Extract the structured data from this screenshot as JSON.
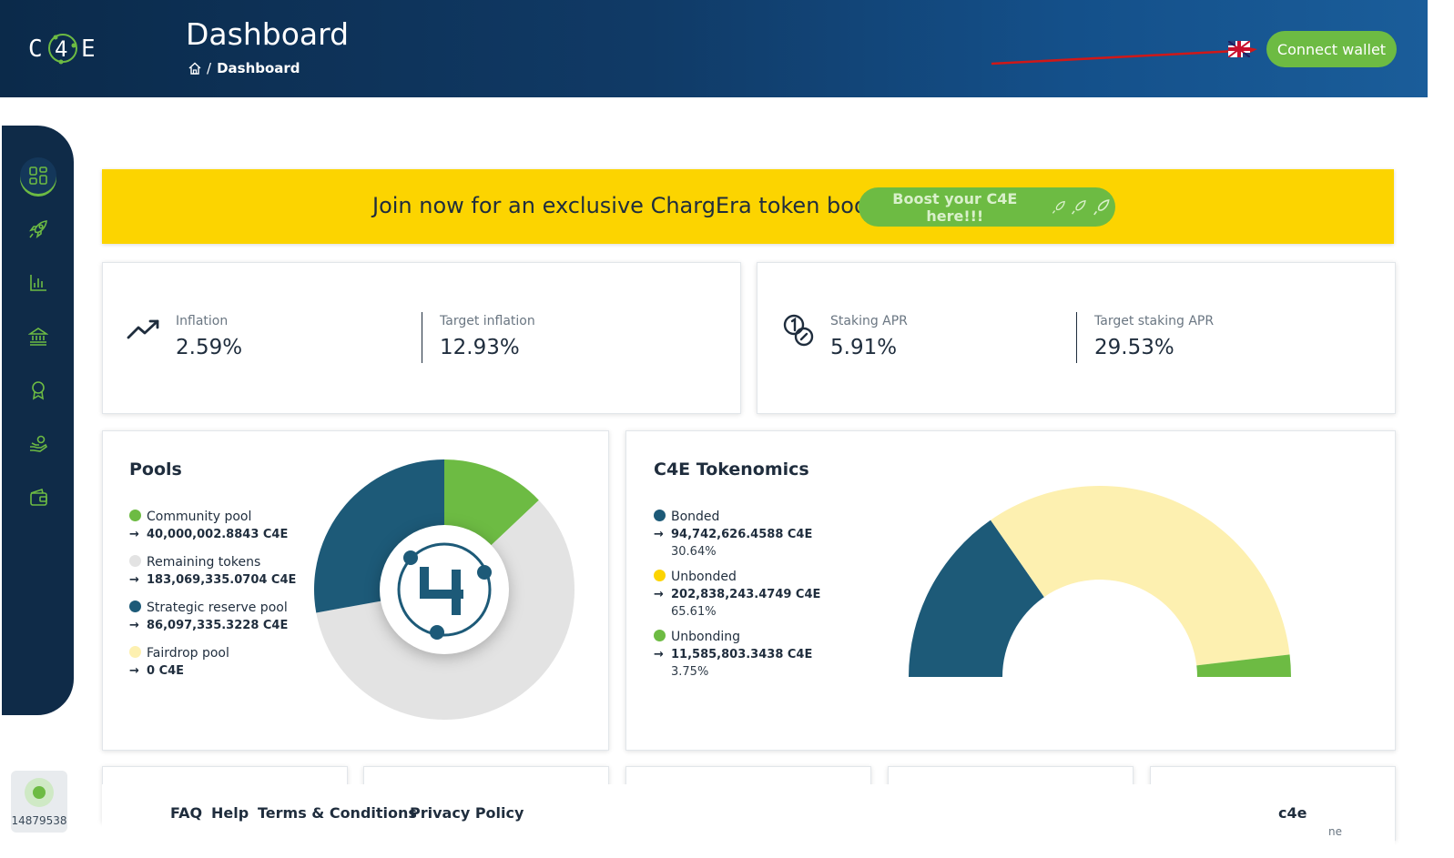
{
  "header": {
    "logo_text": "C4E",
    "title": "Dashboard",
    "breadcrumb": {
      "home_icon": "home-icon",
      "separator": "/",
      "current": "Dashboard"
    },
    "language_flag": "uk-flag-icon",
    "connect_wallet_label": "Connect wallet"
  },
  "sidebar": {
    "items": [
      {
        "icon": "dashboard-grid-icon",
        "active": true
      },
      {
        "icon": "rocket-icon",
        "active": false
      },
      {
        "icon": "bar-chart-icon",
        "active": false
      },
      {
        "icon": "bank-icon",
        "active": false
      },
      {
        "icon": "award-icon",
        "active": false
      },
      {
        "icon": "hand-coins-icon",
        "active": false
      },
      {
        "icon": "wallet-icon",
        "active": false
      }
    ],
    "status": {
      "block_height": "14879538",
      "status_color": "#6dbb43"
    }
  },
  "banner": {
    "text": "Join now for an exclusive ChargEra token boost!",
    "button_label": "Boost your C4E here!!!"
  },
  "stats_left": {
    "icon": "trending-up-icon",
    "inflation_label": "Inflation",
    "inflation_value": "2.59%",
    "target_inflation_label": "Target inflation",
    "target_inflation_value": "12.93%"
  },
  "stats_right": {
    "icon": "coins-icon",
    "staking_apr_label": "Staking APR",
    "staking_apr_value": "5.91%",
    "target_staking_apr_label": "Target staking APR",
    "target_staking_apr_value": "29.53%"
  },
  "pools": {
    "title": "Pools",
    "items": [
      {
        "name": "Community pool",
        "amount": "40,000,002.8843 C4E",
        "color": "#6dbb43"
      },
      {
        "name": "Remaining tokens",
        "amount": "183,069,335.0704 C4E",
        "color": "#e3e3e3"
      },
      {
        "name": "Strategic reserve pool",
        "amount": "86,097,335.3228 C4E",
        "color": "#1d5a78"
      },
      {
        "name": "Fairdrop pool",
        "amount": "0 C4E",
        "color": "#fdf0b0"
      }
    ]
  },
  "tokenomics": {
    "title": "C4E Tokenomics",
    "items": [
      {
        "name": "Bonded",
        "amount": "94,742,626.4588 C4E",
        "percent": "30.64%",
        "color": "#1d5a78"
      },
      {
        "name": "Unbonded",
        "amount": "202,838,243.4749 C4E",
        "percent": "65.61%",
        "color": "#fcd400"
      },
      {
        "name": "Unbonding",
        "amount": "11,585,803.3438 C4E",
        "percent": "3.75%",
        "color": "#6dbb43"
      }
    ]
  },
  "chart_data": [
    {
      "type": "pie",
      "labels": [
        "Community pool",
        "Remaining tokens",
        "Strategic reserve pool",
        "Fairdrop pool"
      ],
      "values": [
        40000002.8843,
        183069335.0704,
        86097335.3228,
        0
      ],
      "colors": [
        "#6dbb43",
        "#e3e3e3",
        "#1d5a78",
        "#fdf0b0"
      ]
    },
    {
      "type": "pie",
      "labels": [
        "Bonded",
        "Unbonded",
        "Unbonding"
      ],
      "values": [
        30.64,
        65.61,
        3.75
      ],
      "colors": [
        "#1d5a78",
        "#fdf0b0",
        "#6dbb43"
      ]
    }
  ],
  "footer": {
    "links": [
      "FAQ",
      "Help",
      "Terms & Conditions",
      "Privacy Policy"
    ],
    "brand": "c4e",
    "partial_text": "ne"
  }
}
